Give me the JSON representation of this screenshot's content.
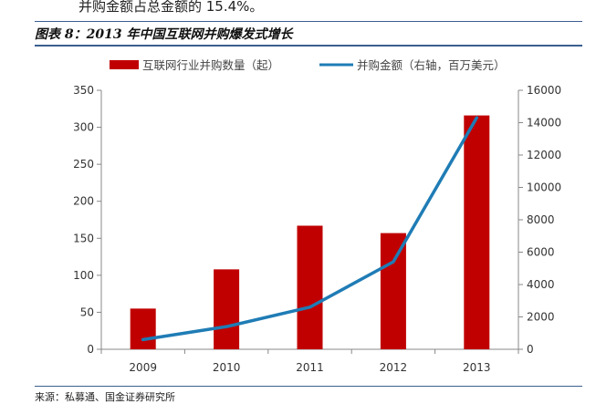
{
  "header": {
    "intro_text": "并购金额占总金额的 15.4%。",
    "figure_title": "图表 8：2013 年中国互联网并购爆发式增长"
  },
  "footer": {
    "source": "来源：私募通、国金证券研究所"
  },
  "chart_data": {
    "type": "bar",
    "categories": [
      "2009",
      "2010",
      "2011",
      "2012",
      "2013"
    ],
    "series": [
      {
        "name": "互联网行业并购数量（起）",
        "type": "bar",
        "axis": "left",
        "values": [
          55,
          108,
          167,
          157,
          316
        ],
        "color": "#c00000"
      },
      {
        "name": "并购金额（右轴，百万美元）",
        "type": "line",
        "axis": "right",
        "values": [
          600,
          1400,
          2600,
          5400,
          14300
        ],
        "color": "#1f7cb5"
      }
    ],
    "y_left": {
      "min": 0,
      "max": 350,
      "ticks": [
        "0",
        "50",
        "100",
        "150",
        "200",
        "250",
        "300",
        "350"
      ]
    },
    "y_right": {
      "min": 0,
      "max": 16000,
      "ticks": [
        "0",
        "2000",
        "4000",
        "6000",
        "8000",
        "10000",
        "12000",
        "14000",
        "16000"
      ]
    },
    "legend_position": "top"
  }
}
